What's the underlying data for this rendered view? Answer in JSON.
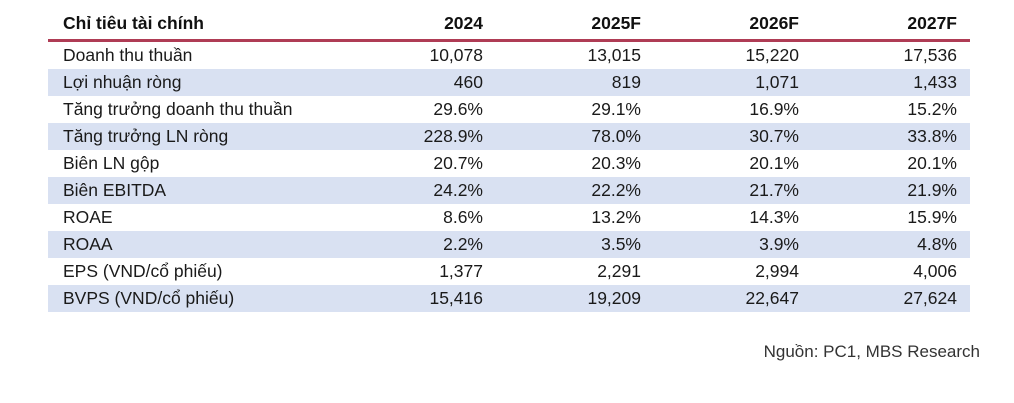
{
  "table": {
    "header": {
      "label": "Chỉ tiêu tài chính",
      "cols": [
        "2024",
        "2025F",
        "2026F",
        "2027F"
      ]
    },
    "rows": [
      {
        "label": "Doanh thu thuần",
        "values": [
          "10,078",
          "13,015",
          "15,220",
          "17,536"
        ]
      },
      {
        "label": "Lợi nhuận ròng",
        "values": [
          "460",
          "819",
          "1,071",
          "1,433"
        ]
      },
      {
        "label": "Tăng trưởng doanh thu thuần",
        "values": [
          "29.6%",
          "29.1%",
          "16.9%",
          "15.2%"
        ]
      },
      {
        "label": "Tăng trưởng LN ròng",
        "values": [
          "228.9%",
          "78.0%",
          "30.7%",
          "33.8%"
        ]
      },
      {
        "label": "Biên LN gộp",
        "values": [
          "20.7%",
          "20.3%",
          "20.1%",
          "20.1%"
        ]
      },
      {
        "label": "Biên EBITDA",
        "values": [
          "24.2%",
          "22.2%",
          "21.7%",
          "21.9%"
        ]
      },
      {
        "label": "ROAE",
        "values": [
          "8.6%",
          "13.2%",
          "14.3%",
          "15.9%"
        ]
      },
      {
        "label": "ROAA",
        "values": [
          "2.2%",
          "3.5%",
          "3.9%",
          "4.8%"
        ]
      },
      {
        "label": "EPS (VND/cổ phiếu)",
        "values": [
          "1,377",
          "2,291",
          "2,994",
          "4,006"
        ]
      },
      {
        "label": "BVPS (VND/cổ phiếu)",
        "values": [
          "15,416",
          "19,209",
          "22,647",
          "27,624"
        ]
      }
    ]
  },
  "footer": {
    "source": "Nguồn: PC1, MBS Research"
  },
  "colors": {
    "accent_line": "#AF3C55",
    "row_alt_background": "#D9E1F2",
    "text": "#1A1A1A"
  }
}
